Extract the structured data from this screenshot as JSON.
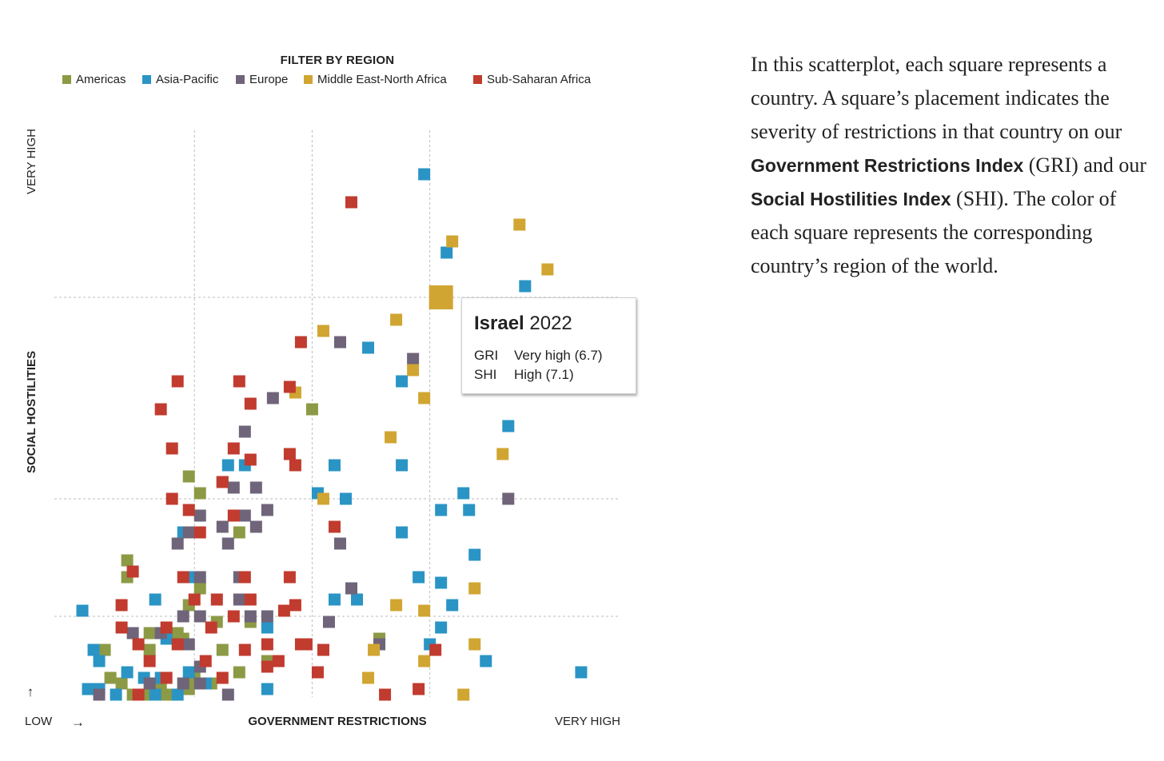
{
  "legend": {
    "title": "FILTER BY REGION",
    "items": [
      {
        "label": "Americas",
        "color": "#8c9a45"
      },
      {
        "label": "Asia-Pacific",
        "color": "#2a94c5"
      },
      {
        "label": "Europe",
        "color": "#6f6479"
      },
      {
        "label": "Middle East-North Africa",
        "color": "#d1a532"
      },
      {
        "label": "Sub-Saharan Africa",
        "color": "#c13b2f"
      }
    ]
  },
  "axes": {
    "y_label": "SOCIAL HOSTILITIES",
    "y_high": "VERY HIGH",
    "x_label": "GOVERNMENT RESTRICTIONS",
    "x_low": "LOW",
    "x_high": "VERY HIGH",
    "up_arrow": "↑",
    "right_arrow": "→"
  },
  "tooltip": {
    "country": "Israel",
    "year": "2022",
    "gri_key": "GRI",
    "gri_value": "Very high (6.7)",
    "shi_key": "SHI",
    "shi_value": "High (7.1)"
  },
  "description": {
    "text1": "In this scatterplot, each square represents a country. A square’s placement indicates the severity of restrictions in that country on our ",
    "bold1": "Government Restrictions Index",
    "text2": " (GRI) and our ",
    "bold2": "Social Hostilities Index",
    "text3": " (SHI). The color of each square represents the corresponding country’s region of the world."
  },
  "chart_data": {
    "type": "scatter",
    "x_label": "GOVERNMENT RESTRICTIONS",
    "y_label": "SOCIAL HOSTILITIES",
    "xlim": [
      0,
      10
    ],
    "ylim": [
      0,
      10
    ],
    "x_gridlines": [
      2.3,
      4.4,
      6.5
    ],
    "y_gridlines": [
      1.4,
      3.5,
      7.1
    ],
    "highlighted": {
      "label": "Israel",
      "region": "Middle East-North Africa",
      "x": 6.7,
      "y": 7.1
    },
    "series": [
      {
        "name": "Americas",
        "color": "#8c9a45",
        "points": [
          [
            2.2,
            3.9
          ],
          [
            2.4,
            3.6
          ],
          [
            3.1,
            2.9
          ],
          [
            1.1,
            2.4
          ],
          [
            1.1,
            2.1
          ],
          [
            2.4,
            1.9
          ],
          [
            2.2,
            1.6
          ],
          [
            2.7,
            1.3
          ],
          [
            3.3,
            1.3
          ],
          [
            1.5,
            1.1
          ],
          [
            2.0,
            1.1
          ],
          [
            2.1,
            1.0
          ],
          [
            0.7,
            0.8
          ],
          [
            1.5,
            0.8
          ],
          [
            2.8,
            0.8
          ],
          [
            3.6,
            0.6
          ],
          [
            3.1,
            0.4
          ],
          [
            5.6,
            1.0
          ],
          [
            0.8,
            0.3
          ],
          [
            1.0,
            0.2
          ],
          [
            1.7,
            0.2
          ],
          [
            2.1,
            0.2
          ],
          [
            2.3,
            0.3
          ],
          [
            2.6,
            0.2
          ],
          [
            1.2,
            0.0
          ],
          [
            1.4,
            0.0
          ],
          [
            1.7,
            0.0
          ],
          [
            1.9,
            0.0
          ],
          [
            2.2,
            0.1
          ],
          [
            4.4,
            5.1
          ]
        ]
      },
      {
        "name": "Asia-Pacific",
        "color": "#2a94c5",
        "points": [
          [
            6.4,
            9.3
          ],
          [
            6.8,
            7.9
          ],
          [
            8.2,
            7.3
          ],
          [
            5.4,
            6.2
          ],
          [
            6.0,
            5.6
          ],
          [
            7.9,
            4.8
          ],
          [
            2.9,
            4.1
          ],
          [
            3.2,
            4.1
          ],
          [
            4.8,
            4.1
          ],
          [
            6.0,
            4.1
          ],
          [
            4.5,
            3.6
          ],
          [
            5.0,
            3.5
          ],
          [
            7.1,
            3.6
          ],
          [
            6.7,
            3.3
          ],
          [
            7.2,
            3.3
          ],
          [
            2.1,
            2.9
          ],
          [
            6.0,
            2.9
          ],
          [
            7.3,
            2.5
          ],
          [
            2.3,
            2.1
          ],
          [
            6.3,
            2.1
          ],
          [
            6.7,
            2.0
          ],
          [
            1.6,
            1.7
          ],
          [
            4.8,
            1.7
          ],
          [
            5.2,
            1.7
          ],
          [
            6.9,
            1.6
          ],
          [
            0.3,
            1.5
          ],
          [
            3.6,
            1.2
          ],
          [
            6.7,
            1.2
          ],
          [
            1.8,
            1.0
          ],
          [
            6.5,
            0.9
          ],
          [
            0.5,
            0.8
          ],
          [
            0.6,
            0.6
          ],
          [
            7.5,
            0.6
          ],
          [
            1.1,
            0.4
          ],
          [
            1.4,
            0.3
          ],
          [
            1.7,
            0.3
          ],
          [
            2.2,
            0.4
          ],
          [
            9.2,
            0.4
          ],
          [
            0.4,
            0.1
          ],
          [
            0.6,
            0.1
          ],
          [
            0.9,
            0.0
          ],
          [
            1.6,
            0.0
          ],
          [
            2.0,
            0.0
          ],
          [
            2.5,
            0.2
          ],
          [
            3.6,
            0.1
          ]
        ]
      },
      {
        "name": "Europe",
        "color": "#6f6479",
        "points": [
          [
            4.9,
            6.3
          ],
          [
            6.2,
            6.0
          ],
          [
            3.7,
            5.3
          ],
          [
            3.2,
            4.7
          ],
          [
            2.8,
            3.8
          ],
          [
            3.0,
            3.7
          ],
          [
            3.4,
            3.7
          ],
          [
            2.4,
            3.2
          ],
          [
            3.2,
            3.2
          ],
          [
            3.6,
            3.3
          ],
          [
            3.4,
            3.0
          ],
          [
            2.8,
            3.0
          ],
          [
            2.2,
            2.9
          ],
          [
            2.0,
            2.7
          ],
          [
            2.9,
            2.7
          ],
          [
            7.9,
            3.5
          ],
          [
            4.9,
            2.7
          ],
          [
            2.4,
            2.1
          ],
          [
            3.1,
            2.1
          ],
          [
            5.1,
            1.9
          ],
          [
            3.1,
            1.7
          ],
          [
            3.6,
            1.4
          ],
          [
            2.1,
            1.4
          ],
          [
            2.4,
            1.4
          ],
          [
            4.7,
            1.3
          ],
          [
            1.2,
            1.1
          ],
          [
            1.7,
            1.1
          ],
          [
            2.2,
            0.9
          ],
          [
            5.6,
            0.9
          ],
          [
            2.4,
            0.5
          ],
          [
            2.1,
            0.2
          ],
          [
            2.4,
            0.2
          ],
          [
            0.6,
            0.0
          ],
          [
            1.5,
            0.2
          ],
          [
            2.9,
            0.0
          ],
          [
            3.3,
            1.4
          ]
        ]
      },
      {
        "name": "Middle East-North Africa",
        "color": "#d1a532",
        "points": [
          [
            8.1,
            8.4
          ],
          [
            6.9,
            8.1
          ],
          [
            8.6,
            7.6
          ],
          [
            6.7,
            7.1
          ],
          [
            5.9,
            6.7
          ],
          [
            4.6,
            6.5
          ],
          [
            6.2,
            5.8
          ],
          [
            6.4,
            5.3
          ],
          [
            4.1,
            5.4
          ],
          [
            5.8,
            4.6
          ],
          [
            7.8,
            4.3
          ],
          [
            4.6,
            3.5
          ],
          [
            7.3,
            1.9
          ],
          [
            5.9,
            1.6
          ],
          [
            6.4,
            1.5
          ],
          [
            7.3,
            0.9
          ],
          [
            5.5,
            0.8
          ],
          [
            6.4,
            0.6
          ],
          [
            5.4,
            0.3
          ],
          [
            7.1,
            0.0
          ]
        ]
      },
      {
        "name": "Sub-Saharan Africa",
        "color": "#c13b2f",
        "points": [
          [
            5.1,
            8.8
          ],
          [
            4.2,
            6.3
          ],
          [
            3.1,
            5.6
          ],
          [
            2.0,
            5.6
          ],
          [
            4.0,
            5.5
          ],
          [
            3.3,
            5.2
          ],
          [
            1.7,
            5.1
          ],
          [
            1.9,
            4.4
          ],
          [
            3.0,
            4.4
          ],
          [
            4.0,
            4.3
          ],
          [
            3.3,
            4.2
          ],
          [
            4.1,
            4.1
          ],
          [
            2.8,
            3.8
          ],
          [
            1.9,
            3.5
          ],
          [
            2.2,
            3.3
          ],
          [
            3.0,
            3.2
          ],
          [
            4.8,
            3.0
          ],
          [
            1.2,
            2.2
          ],
          [
            2.1,
            2.1
          ],
          [
            2.4,
            2.9
          ],
          [
            3.2,
            2.1
          ],
          [
            4.0,
            2.1
          ],
          [
            1.0,
            1.6
          ],
          [
            2.3,
            1.7
          ],
          [
            2.7,
            1.7
          ],
          [
            3.3,
            1.7
          ],
          [
            4.1,
            1.6
          ],
          [
            1.0,
            1.2
          ],
          [
            1.8,
            1.2
          ],
          [
            3.0,
            1.4
          ],
          [
            3.9,
            1.5
          ],
          [
            1.3,
            0.9
          ],
          [
            2.0,
            0.9
          ],
          [
            3.2,
            0.8
          ],
          [
            4.3,
            0.9
          ],
          [
            3.6,
            0.9
          ],
          [
            4.6,
            0.8
          ],
          [
            6.6,
            0.8
          ],
          [
            1.5,
            0.6
          ],
          [
            2.5,
            0.6
          ],
          [
            3.8,
            0.6
          ],
          [
            4.2,
            0.9
          ],
          [
            4.5,
            0.4
          ],
          [
            1.8,
            0.3
          ],
          [
            2.8,
            0.3
          ],
          [
            3.6,
            0.5
          ],
          [
            6.3,
            0.1
          ],
          [
            1.3,
            0.0
          ],
          [
            5.7,
            0.0
          ],
          [
            2.6,
            1.2
          ]
        ]
      }
    ]
  }
}
